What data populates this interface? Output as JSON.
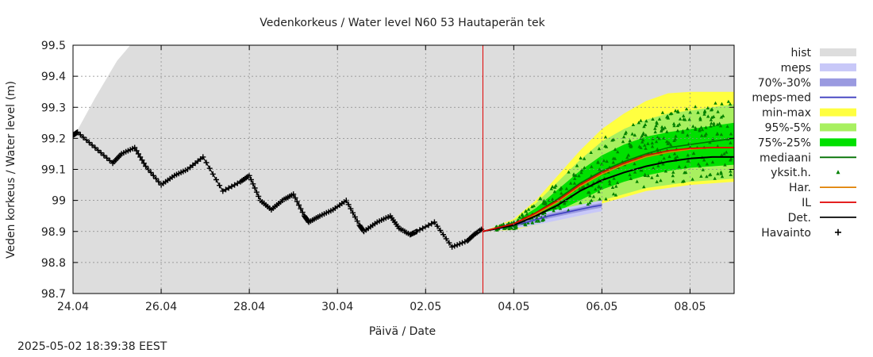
{
  "chart_data": {
    "type": "line",
    "title": "Vedenkorkeus / Water level   N60 53 Hautaperän tek",
    "xlabel": "Päivä / Date",
    "ylabel": "Veden korkeus / Water level (m)",
    "ylim": [
      98.7,
      99.5
    ],
    "xlim": [
      "2025-04-24",
      "2025-05-09"
    ],
    "x_ticks": [
      "24.04",
      "26.04",
      "28.04",
      "30.04",
      "02.05",
      "04.05",
      "06.05",
      "08.05"
    ],
    "y_ticks": [
      "98.7",
      "98.8",
      "98.9",
      "99",
      "99.1",
      "99.2",
      "99.3",
      "99.4",
      "99.5"
    ],
    "grid": true,
    "legend_position": "right",
    "forecast_start": "2025-05-02",
    "timestamp": "2025-05-02 18:39:38 EEST",
    "legend": [
      {
        "key": "hist",
        "label": "hist",
        "color": "#dddddd",
        "style": "band"
      },
      {
        "key": "meps",
        "label": "meps",
        "color": "#c8c8f8",
        "style": "band"
      },
      {
        "key": "meps7030",
        "label": "70%-30%",
        "color": "#9a9ae0",
        "style": "band"
      },
      {
        "key": "mepsmed",
        "label": "meps-med",
        "color": "#4040c0",
        "style": "line"
      },
      {
        "key": "minmax",
        "label": "min-max",
        "color": "#ffff40",
        "style": "band"
      },
      {
        "key": "p955",
        "label": "95%-5%",
        "color": "#a8f060",
        "style": "band"
      },
      {
        "key": "p7525",
        "label": "75%-25%",
        "color": "#00e000",
        "style": "band"
      },
      {
        "key": "mediaani",
        "label": "mediaani",
        "color": "#007000",
        "style": "line"
      },
      {
        "key": "yksit",
        "label": "yksit.h.",
        "color": "#008000",
        "style": "triangle"
      },
      {
        "key": "har",
        "label": "Har.",
        "color": "#e08000",
        "style": "line"
      },
      {
        "key": "il",
        "label": "IL",
        "color": "#e00000",
        "style": "line"
      },
      {
        "key": "det",
        "label": "Det.",
        "color": "#000000",
        "style": "line"
      },
      {
        "key": "havainto",
        "label": "Havainto",
        "color": "#000000",
        "style": "plus"
      }
    ],
    "series": [
      {
        "name": "Havainto",
        "x": [
          0.0,
          0.1,
          0.5,
          0.9,
          1.1,
          1.4,
          1.65,
          2.0,
          2.3,
          2.6,
          2.95,
          3.4,
          3.8,
          4.0,
          4.25,
          4.5,
          4.75,
          5.0,
          5.25,
          5.35,
          5.6,
          5.9,
          6.2,
          6.5,
          6.6,
          6.9,
          7.2,
          7.4,
          7.65,
          7.8,
          8.2,
          8.6,
          8.95,
          9.1,
          9.3
        ],
        "y": [
          99.21,
          99.22,
          99.17,
          99.12,
          99.15,
          99.17,
          99.11,
          99.05,
          99.08,
          99.1,
          99.14,
          99.03,
          99.06,
          99.08,
          99.0,
          98.97,
          99.0,
          99.02,
          98.95,
          98.93,
          98.95,
          98.97,
          99.0,
          98.92,
          98.9,
          98.93,
          98.95,
          98.91,
          98.89,
          98.9,
          98.93,
          98.85,
          98.87,
          98.89,
          98.91
        ]
      },
      {
        "name": "Det.",
        "x": [
          9.3,
          10.0,
          10.5,
          11.0,
          11.5,
          12.0,
          12.5,
          13.0,
          13.5,
          14.0,
          14.5,
          15.0
        ],
        "y": [
          98.9,
          98.92,
          98.95,
          98.985,
          99.03,
          99.065,
          99.09,
          99.11,
          99.125,
          99.135,
          99.14,
          99.14
        ]
      },
      {
        "name": "IL",
        "x": [
          9.3,
          10.0,
          10.5,
          11.0,
          11.5,
          12.0,
          12.5,
          13.0,
          13.5,
          14.0,
          14.5,
          15.0
        ],
        "y": [
          98.9,
          98.925,
          98.96,
          99.0,
          99.05,
          99.09,
          99.12,
          99.145,
          99.16,
          99.168,
          99.17,
          99.17
        ]
      },
      {
        "name": "Har.",
        "x": [
          9.3,
          10.0,
          10.5,
          11.0,
          11.5,
          12.0,
          12.5,
          13.0,
          13.5,
          14.0,
          14.5,
          15.0
        ],
        "y": [
          98.9,
          98.92,
          98.955,
          98.995,
          99.045,
          99.085,
          99.115,
          99.14,
          99.155,
          99.165,
          99.17,
          99.17
        ]
      },
      {
        "name": "mediaani",
        "x": [
          9.3,
          10.0,
          10.5,
          11.0,
          11.5,
          12.0,
          12.5,
          13.0,
          13.5,
          14.0,
          14.5,
          15.0
        ],
        "y": [
          98.9,
          98.925,
          98.96,
          99.005,
          99.055,
          99.095,
          99.125,
          99.15,
          99.17,
          99.18,
          99.19,
          99.2
        ]
      },
      {
        "name": "meps-med",
        "x": [
          9.3,
          9.8,
          10.3,
          10.8,
          11.3,
          11.8,
          12.0
        ],
        "y": [
          98.9,
          98.915,
          98.93,
          98.95,
          98.965,
          98.98,
          98.985
        ]
      }
    ],
    "bands": {
      "hist": {
        "x": [
          0.0,
          0.5,
          1.0,
          1.3,
          15.0
        ],
        "upper": [
          99.2,
          99.33,
          99.45,
          99.5,
          99.5
        ],
        "lower": [
          98.7,
          98.7,
          98.7,
          98.7,
          98.7
        ]
      },
      "minmax": {
        "x": [
          9.3,
          10.0,
          10.5,
          11.0,
          11.5,
          12.0,
          12.5,
          13.0,
          13.5,
          14.0,
          14.5,
          15.0
        ],
        "upper": [
          98.9,
          98.94,
          99.0,
          99.08,
          99.16,
          99.23,
          99.28,
          99.32,
          99.345,
          99.35,
          99.35,
          99.35
        ],
        "lower": [
          98.9,
          98.905,
          98.92,
          98.94,
          98.96,
          98.99,
          99.01,
          99.03,
          99.04,
          99.05,
          99.055,
          99.06
        ]
      },
      "p955": {
        "x": [
          9.3,
          10.0,
          10.5,
          11.0,
          11.5,
          12.0,
          12.5,
          13.0,
          13.5,
          14.0,
          14.5,
          15.0
        ],
        "upper": [
          98.9,
          98.935,
          98.99,
          99.06,
          99.13,
          99.19,
          99.23,
          99.26,
          99.28,
          99.29,
          99.3,
          99.31
        ],
        "lower": [
          98.9,
          98.908,
          98.925,
          98.95,
          98.975,
          99.0,
          99.02,
          99.04,
          99.05,
          99.06,
          99.065,
          99.07
        ]
      },
      "p7525": {
        "x": [
          9.3,
          10.0,
          10.5,
          11.0,
          11.5,
          12.0,
          12.5,
          13.0,
          13.5,
          14.0,
          14.5,
          15.0
        ],
        "upper": [
          98.9,
          98.93,
          98.975,
          99.035,
          99.095,
          99.145,
          99.18,
          99.205,
          99.22,
          99.23,
          99.24,
          99.25
        ],
        "lower": [
          98.9,
          98.912,
          98.935,
          98.965,
          99.0,
          99.035,
          99.06,
          99.08,
          99.095,
          99.105,
          99.11,
          99.115
        ]
      },
      "meps": {
        "x": [
          9.3,
          9.8,
          10.3,
          10.8,
          11.3,
          11.8,
          12.0
        ],
        "upper": [
          98.9,
          98.925,
          98.945,
          98.965,
          98.98,
          98.995,
          99.0
        ],
        "lower": [
          98.9,
          98.905,
          98.915,
          98.93,
          98.945,
          98.96,
          98.965
        ]
      },
      "meps7030": {
        "x": [
          9.3,
          9.8,
          10.3,
          10.8,
          11.3,
          11.8,
          12.0
        ],
        "upper": [
          98.9,
          98.92,
          98.937,
          98.957,
          98.972,
          98.987,
          98.992
        ],
        "lower": [
          98.9,
          98.91,
          98.922,
          98.942,
          98.957,
          98.972,
          98.977
        ]
      }
    }
  }
}
